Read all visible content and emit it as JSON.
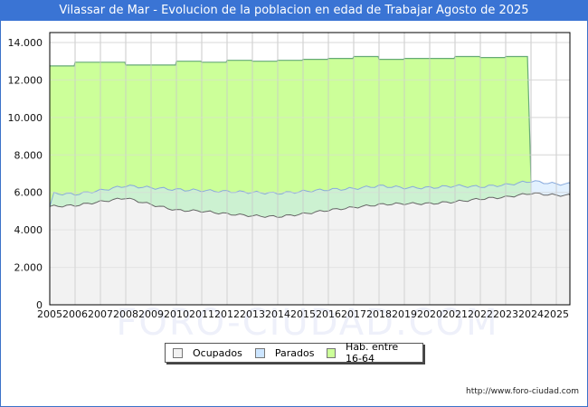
{
  "header": {
    "title": "Vilassar de Mar - Evolucion de la poblacion en edad de Trabajar Agosto de 2025"
  },
  "footer": {
    "url": "http://www.foro-ciudad.com"
  },
  "watermark": "FORO-CIUDAD.COM",
  "legend": {
    "items": [
      {
        "label": "Ocupados",
        "color": "#f2f2f2"
      },
      {
        "label": "Parados",
        "color": "#cce5ff"
      },
      {
        "label": "Hab. entre 16-64",
        "color": "#ccff99"
      }
    ]
  },
  "chart_data": {
    "type": "area",
    "title": "Vilassar de Mar - Evolucion de la poblacion en edad de Trabajar Agosto de 2025",
    "xlabel": "",
    "ylabel": "",
    "ylim": [
      0,
      14000
    ],
    "yticks": [
      "0",
      "2.000",
      "4.000",
      "6.000",
      "8.000",
      "10.000",
      "12.000",
      "14.000"
    ],
    "x": [
      2005,
      2006,
      2007,
      2008,
      2009,
      2010,
      2011,
      2012,
      2013,
      2014,
      2015,
      2016,
      2017,
      2018,
      2019,
      2020,
      2021,
      2022,
      2023,
      2024,
      2025
    ],
    "grid": true,
    "legend_position": "bottom",
    "series": [
      {
        "name": "Hab. entre 16-64",
        "color": "#ccff99",
        "line": "#66aa77",
        "values": [
          12750,
          12950,
          12950,
          12800,
          12800,
          13000,
          12950,
          13050,
          13000,
          13050,
          13100,
          13150,
          13250,
          13100,
          13150,
          13150,
          13250,
          13200,
          13250,
          null,
          null
        ]
      },
      {
        "name": "Parados",
        "note": "top of band = Ocupados + Parados",
        "color": "#cce5ff",
        "line": "#88aadd",
        "values": [
          5950,
          5900,
          6100,
          6350,
          6250,
          6150,
          6100,
          6050,
          6000,
          5950,
          6050,
          6150,
          6200,
          6350,
          6250,
          6250,
          6350,
          6300,
          6400,
          6600,
          6450
        ]
      },
      {
        "name": "Ocupados",
        "color": "#f2f2f2",
        "line": "#666666",
        "values": [
          5250,
          5300,
          5500,
          5700,
          5350,
          5050,
          5000,
          4850,
          4750,
          4700,
          4850,
          5050,
          5200,
          5350,
          5400,
          5400,
          5500,
          5650,
          5750,
          5950,
          5850
        ]
      }
    ]
  }
}
